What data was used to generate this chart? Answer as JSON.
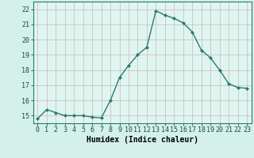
{
  "x": [
    0,
    1,
    2,
    3,
    4,
    5,
    6,
    7,
    8,
    9,
    10,
    11,
    12,
    13,
    14,
    15,
    16,
    17,
    18,
    19,
    20,
    21,
    22,
    23
  ],
  "y": [
    14.8,
    15.4,
    15.2,
    15.0,
    15.0,
    15.0,
    14.9,
    14.85,
    16.0,
    17.5,
    18.3,
    19.0,
    19.5,
    21.9,
    21.6,
    21.4,
    21.1,
    20.5,
    19.3,
    18.8,
    18.0,
    17.1,
    16.85,
    16.8
  ],
  "line_color": "#2d7a6e",
  "marker": "D",
  "marker_size": 2.0,
  "bg_color": "#d4f0eb",
  "grid_color": "#c8b8b8",
  "xlabel": "Humidex (Indice chaleur)",
  "ylim": [
    14.5,
    22.5
  ],
  "xlim": [
    -0.5,
    23.5
  ],
  "yticks": [
    15,
    16,
    17,
    18,
    19,
    20,
    21,
    22
  ],
  "xticks": [
    0,
    1,
    2,
    3,
    4,
    5,
    6,
    7,
    8,
    9,
    10,
    11,
    12,
    13,
    14,
    15,
    16,
    17,
    18,
    19,
    20,
    21,
    22,
    23
  ],
  "tick_fontsize": 6.0,
  "xlabel_fontsize": 7.0,
  "axis_bg": "#dff5f0",
  "spine_color": "#2d7a6e",
  "linewidth": 1.0
}
